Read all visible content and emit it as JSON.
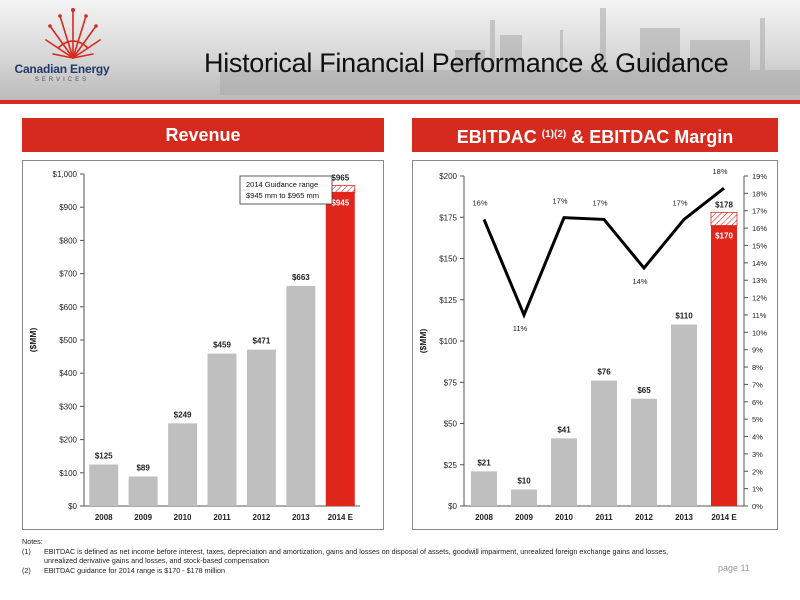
{
  "header": {
    "title": "Historical Financial Performance & Guidance",
    "logo_name": "Canadian Energy",
    "logo_sub": "SERVICES"
  },
  "revenue_panel": {
    "heading": "Revenue",
    "annotation_line1": "2014 Guidance range",
    "annotation_line2": "$945 mm to $965 mm",
    "guidance_top_label": "$965",
    "guidance_low_label": "$945"
  },
  "ebitdac_panel": {
    "heading": "EBITDAC",
    "heading_sup": "(1)(2)",
    "heading_rest": "& EBITDAC Margin",
    "guidance_top_label": "$178",
    "guidance_low_label": "$170"
  },
  "notes": {
    "title": "Notes:",
    "items": [
      {
        "num": "(1)",
        "text": "EBITDAC is defined as net income before interest, taxes, depreciation and amortization, gains and losses on disposal of assets, goodwill impairment, unrealized foreign exchange gains and losses, unrealized derivative gains and losses, and stock-based compensation"
      },
      {
        "num": "(2)",
        "text": "EBITDAC guidance for 2014 range is $170 - $178 million"
      }
    ]
  },
  "page_number": "page 11",
  "colors": {
    "accent": "#d62a1f",
    "bar": "#bfbfbf",
    "line": "#000000"
  },
  "chart_data": [
    {
      "type": "bar",
      "title": "Revenue",
      "ylabel": "($MM)",
      "categories": [
        "2008",
        "2009",
        "2010",
        "2011",
        "2012",
        "2013",
        "2014 E"
      ],
      "values": [
        125,
        89,
        249,
        459,
        471,
        663,
        945
      ],
      "value_labels": [
        "$125",
        "$89",
        "$249",
        "$459",
        "$471",
        "$663",
        "$945"
      ],
      "guidance_range": [
        945,
        965
      ],
      "ylim": [
        0,
        1000
      ],
      "yticks": [
        0,
        100,
        200,
        300,
        400,
        500,
        600,
        700,
        800,
        900,
        1000
      ],
      "ytick_labels": [
        "$0",
        "$100",
        "$200",
        "$300",
        "$400",
        "$500",
        "$600",
        "$700",
        "$800",
        "$900",
        "$1,000"
      ]
    },
    {
      "type": "bar",
      "title": "EBITDAC & EBITDAC Margin",
      "ylabel": "($MM)",
      "categories": [
        "2008",
        "2009",
        "2010",
        "2011",
        "2012",
        "2013",
        "2014 E"
      ],
      "values": [
        21,
        10,
        41,
        76,
        65,
        110,
        170
      ],
      "value_labels": [
        "$21",
        "$10",
        "$41",
        "$76",
        "$65",
        "$110",
        "$170"
      ],
      "guidance_range": [
        170,
        178
      ],
      "ylim": [
        0,
        200
      ],
      "yticks": [
        0,
        25,
        50,
        75,
        100,
        125,
        150,
        175,
        200
      ],
      "ytick_labels": [
        "$0",
        "$25",
        "$50",
        "$75",
        "$100",
        "$125",
        "$150",
        "$175",
        "$200"
      ],
      "margin_line": {
        "values": [
          16.5,
          11.0,
          16.6,
          16.5,
          13.7,
          16.5,
          18.3
        ],
        "labels": [
          "16%",
          "11%",
          "17%",
          "17%",
          "14%",
          "17%",
          "18%"
        ],
        "ylim": [
          0,
          19
        ],
        "yticks": [
          0,
          1,
          2,
          3,
          4,
          5,
          6,
          7,
          8,
          9,
          10,
          11,
          12,
          13,
          14,
          15,
          16,
          17,
          18,
          19
        ],
        "ytick_labels": [
          "0%",
          "1%",
          "2%",
          "3%",
          "4%",
          "5%",
          "6%",
          "7%",
          "8%",
          "9%",
          "10%",
          "11%",
          "12%",
          "13%",
          "14%",
          "15%",
          "16%",
          "17%",
          "18%",
          "19%"
        ]
      }
    }
  ]
}
